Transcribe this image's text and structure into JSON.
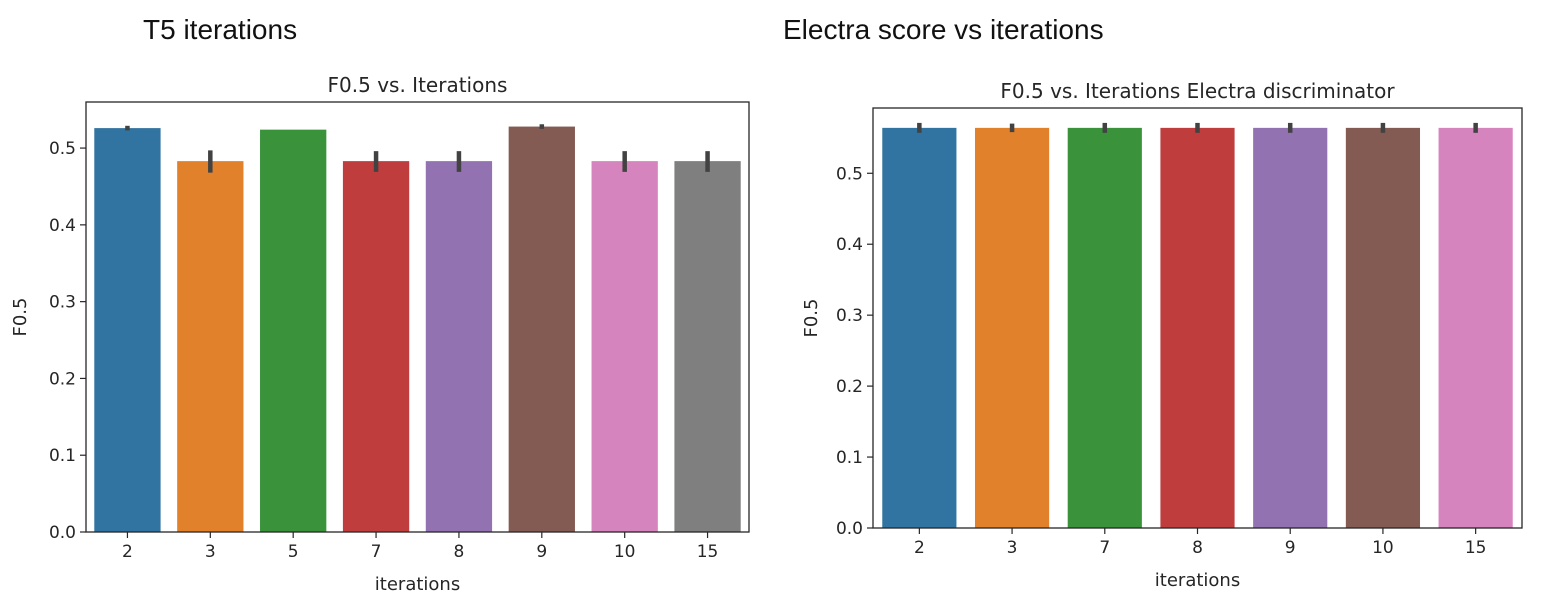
{
  "headings": {
    "left": "T5 iterations",
    "right": "Electra score vs iterations"
  },
  "chart_data": [
    {
      "type": "bar",
      "title": "F0.5 vs. Iterations",
      "xlabel": "iterations",
      "ylabel": "F0.5",
      "categories": [
        "2",
        "3",
        "5",
        "7",
        "8",
        "9",
        "10",
        "15"
      ],
      "values": [
        0.526,
        0.483,
        0.524,
        0.483,
        0.483,
        0.528,
        0.483,
        0.483
      ],
      "error_low": [
        0.523,
        0.468,
        0.524,
        0.469,
        0.469,
        0.525,
        0.469,
        0.469
      ],
      "error_high": [
        0.529,
        0.497,
        0.524,
        0.496,
        0.496,
        0.531,
        0.496,
        0.496
      ],
      "colors": [
        "#3274a1",
        "#e1812c",
        "#3a923a",
        "#c03d3e",
        "#9372b2",
        "#845b53",
        "#d684bd",
        "#7f7f7f"
      ],
      "ylim": [
        0,
        0.56
      ],
      "yticks": [
        0.0,
        0.1,
        0.2,
        0.3,
        0.4,
        0.5
      ],
      "ytick_labels": [
        "0.0",
        "0.1",
        "0.2",
        "0.3",
        "0.4",
        "0.5"
      ],
      "grid": false
    },
    {
      "type": "bar",
      "title": "F0.5 vs. Iterations Electra discriminator",
      "xlabel": "iterations",
      "ylabel": "F0.5",
      "categories": [
        "2",
        "3",
        "7",
        "8",
        "9",
        "10",
        "15"
      ],
      "values": [
        0.564,
        0.564,
        0.564,
        0.564,
        0.564,
        0.564,
        0.564
      ],
      "error_low": [
        0.557,
        0.558,
        0.557,
        0.557,
        0.557,
        0.557,
        0.557
      ],
      "error_high": [
        0.571,
        0.57,
        0.571,
        0.571,
        0.571,
        0.571,
        0.571
      ],
      "colors": [
        "#3274a1",
        "#e1812c",
        "#3a923a",
        "#c03d3e",
        "#9372b2",
        "#845b53",
        "#d684bd"
      ],
      "ylim": [
        0,
        0.592
      ],
      "yticks": [
        0.0,
        0.1,
        0.2,
        0.3,
        0.4,
        0.5
      ],
      "ytick_labels": [
        "0.0",
        "0.1",
        "0.2",
        "0.3",
        "0.4",
        "0.5"
      ],
      "grid": false
    }
  ]
}
